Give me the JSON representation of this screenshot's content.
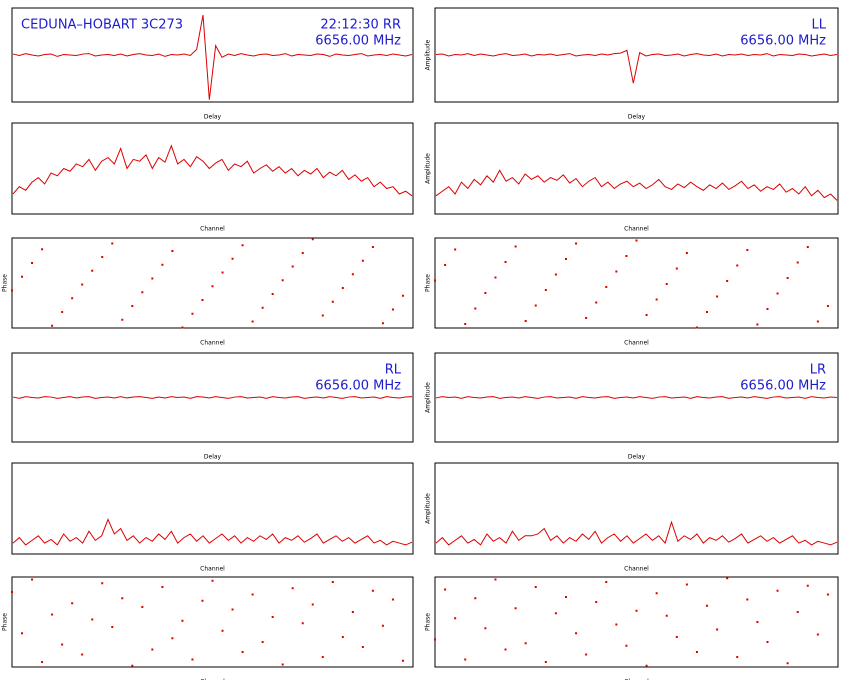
{
  "chart_data": [
    {
      "type": "line",
      "title": "CEDUNA–HOBART 3C273",
      "polarization": "22:12:30  RR",
      "frequency": "6656.00 MHz",
      "x_label": "Delay",
      "color": "#dd0000",
      "ylim": [
        -1,
        1
      ],
      "values": [
        0.02,
        -0.01,
        0.03,
        0,
        -0.02,
        0.01,
        0.02,
        -0.03,
        0.01,
        0,
        -0.01,
        0.02,
        0.03,
        -0.02,
        0,
        0.01,
        -0.01,
        0.02,
        -0.02,
        0.01,
        0.03,
        0,
        -0.01,
        0.02,
        -0.03,
        0.01,
        0,
        0.02,
        -0.01,
        0.12,
        0.85,
        -0.95,
        0.2,
        -0.05,
        0.02,
        -0.01,
        0.03,
        0,
        -0.02,
        0.01,
        0.02,
        -0.01,
        0,
        0.03,
        -0.02,
        0.01,
        0,
        -0.01,
        0.02,
        0.01,
        -0.03,
        0.02,
        0,
        -0.01,
        0.01,
        0.03,
        -0.02,
        0,
        0.01,
        -0.01,
        0.02,
        0,
        -0.02,
        0.01
      ]
    },
    {
      "type": "line",
      "polarization": "LL",
      "frequency": "6656.00 MHz",
      "x_label": "Delay",
      "y_label": "Amplitude",
      "color": "#dd0000",
      "ylim": [
        -1,
        1
      ],
      "values": [
        0.01,
        0.02,
        -0.02,
        0.01,
        0,
        0.03,
        -0.01,
        0.02,
        0,
        -0.02,
        0.01,
        0.03,
        -0.01,
        0,
        0.02,
        -0.02,
        0.01,
        0,
        0.02,
        -0.01,
        0.01,
        0.03,
        -0.02,
        0,
        0.01,
        -0.01,
        0.02,
        0,
        0.03,
        0.04,
        0.1,
        -0.6,
        0.05,
        -0.02,
        0.01,
        0.02,
        -0.01,
        0,
        0.02,
        -0.02,
        0.01,
        0.03,
        0,
        -0.01,
        0.02,
        -0.02,
        0.01,
        0,
        0.02,
        -0.01,
        0.01,
        0,
        0.03,
        -0.02,
        0.01,
        0,
        -0.01,
        0.02,
        0.01,
        -0.02,
        0,
        0.02,
        -0.01,
        0.01
      ]
    },
    {
      "type": "line",
      "x_label": "Channel",
      "color": "#dd0000",
      "ylim": [
        0,
        1
      ],
      "values": [
        0.22,
        0.3,
        0.26,
        0.35,
        0.4,
        0.33,
        0.45,
        0.42,
        0.5,
        0.47,
        0.55,
        0.52,
        0.6,
        0.48,
        0.58,
        0.62,
        0.55,
        0.72,
        0.5,
        0.6,
        0.58,
        0.65,
        0.5,
        0.62,
        0.57,
        0.75,
        0.55,
        0.6,
        0.52,
        0.63,
        0.58,
        0.5,
        0.56,
        0.6,
        0.48,
        0.55,
        0.52,
        0.58,
        0.45,
        0.5,
        0.54,
        0.47,
        0.52,
        0.45,
        0.5,
        0.42,
        0.48,
        0.44,
        0.5,
        0.4,
        0.46,
        0.42,
        0.48,
        0.38,
        0.43,
        0.36,
        0.4,
        0.3,
        0.35,
        0.28,
        0.3,
        0.22,
        0.25,
        0.2
      ]
    },
    {
      "type": "line",
      "x_label": "Channel",
      "y_label": "Amplitude",
      "color": "#dd0000",
      "ylim": [
        0,
        1
      ],
      "values": [
        0.2,
        0.25,
        0.3,
        0.22,
        0.35,
        0.28,
        0.38,
        0.32,
        0.42,
        0.35,
        0.48,
        0.36,
        0.4,
        0.33,
        0.44,
        0.38,
        0.42,
        0.35,
        0.4,
        0.37,
        0.43,
        0.34,
        0.39,
        0.3,
        0.36,
        0.4,
        0.3,
        0.35,
        0.28,
        0.33,
        0.36,
        0.3,
        0.34,
        0.28,
        0.32,
        0.38,
        0.3,
        0.27,
        0.33,
        0.29,
        0.35,
        0.3,
        0.26,
        0.32,
        0.28,
        0.34,
        0.27,
        0.31,
        0.36,
        0.28,
        0.32,
        0.25,
        0.3,
        0.27,
        0.33,
        0.24,
        0.28,
        0.22,
        0.3,
        0.2,
        0.26,
        0.18,
        0.22,
        0.15
      ]
    },
    {
      "type": "scatter",
      "x_label": "Channel",
      "y_label": "Phase",
      "color": "#dd0000",
      "xlim": [
        0,
        240
      ],
      "ylim": [
        -180,
        180
      ],
      "x": [
        0,
        6,
        12,
        18,
        24,
        30,
        36,
        42,
        48,
        54,
        60,
        66,
        72,
        78,
        84,
        90,
        96,
        102,
        108,
        114,
        120,
        126,
        132,
        138,
        144,
        150,
        156,
        162,
        168,
        174,
        180,
        186,
        192,
        198,
        204,
        210,
        216,
        222,
        228,
        234
      ],
      "values": [
        -30,
        25,
        80,
        135,
        -171,
        -116,
        -61,
        -6,
        49,
        104,
        158,
        -147,
        -92,
        -37,
        18,
        73,
        128,
        -178,
        -123,
        -68,
        -13,
        42,
        97,
        151,
        -154,
        -99,
        -44,
        11,
        66,
        120,
        175,
        -130,
        -75,
        -20,
        35,
        89,
        144,
        -161,
        -106,
        -51
      ]
    },
    {
      "type": "scatter",
      "x_label": "Channel",
      "y_label": "Phase",
      "color": "#dd0000",
      "xlim": [
        0,
        240
      ],
      "ylim": [
        -180,
        180
      ],
      "x": [
        0,
        6,
        12,
        18,
        24,
        30,
        36,
        42,
        48,
        54,
        60,
        66,
        72,
        78,
        84,
        90,
        96,
        102,
        108,
        114,
        120,
        126,
        132,
        138,
        144,
        150,
        156,
        162,
        168,
        174,
        180,
        186,
        192,
        198,
        204,
        210,
        216,
        222,
        228,
        234
      ],
      "values": [
        10,
        72,
        134,
        -164,
        -102,
        -40,
        22,
        84,
        146,
        -152,
        -90,
        -28,
        34,
        96,
        158,
        -140,
        -78,
        -16,
        46,
        108,
        170,
        -128,
        -66,
        -4,
        58,
        120,
        -178,
        -116,
        -54,
        8,
        70,
        132,
        -166,
        -104,
        -42,
        20,
        82,
        144,
        -154,
        -92
      ]
    },
    {
      "type": "line",
      "polarization": "RL",
      "frequency": "6656.00 MHz",
      "x_label": "Delay",
      "color": "#dd0000",
      "ylim": [
        -1,
        1
      ],
      "values": [
        0.01,
        -0.02,
        0.02,
        0,
        -0.01,
        0.02,
        0.01,
        -0.02,
        0,
        0.02,
        -0.01,
        0.01,
        0.02,
        -0.02,
        0,
        0.01,
        -0.01,
        0.02,
        -0.01,
        0.01,
        0.02,
        0,
        -0.02,
        0.01,
        -0.01,
        0.02,
        0,
        0.01,
        -0.02,
        0.02,
        0.01,
        -0.01,
        0.02,
        0,
        -0.02,
        0.01,
        0.02,
        -0.01,
        0,
        0.01,
        -0.02,
        0.02,
        0,
        -0.01,
        0.01,
        0.02,
        -0.02,
        0,
        0.01,
        -0.01,
        0.02,
        0,
        -0.02,
        0.01,
        0.02,
        -0.01,
        0,
        0.01,
        -0.02,
        0.02,
        0,
        -0.01,
        0.01,
        0.02
      ]
    },
    {
      "type": "line",
      "polarization": "LR",
      "frequency": "6656.00 MHz",
      "x_label": "Delay",
      "y_label": "Amplitude",
      "color": "#dd0000",
      "ylim": [
        -1,
        1
      ],
      "values": [
        -0.01,
        0.02,
        0,
        0.01,
        -0.02,
        0.02,
        0,
        -0.01,
        0.01,
        0.02,
        -0.02,
        0,
        0.01,
        -0.01,
        0.02,
        0,
        -0.02,
        0.01,
        0.02,
        -0.01,
        0,
        0.01,
        -0.02,
        0.02,
        0,
        -0.01,
        0.01,
        0.02,
        -0.02,
        0,
        0.01,
        -0.01,
        0.02,
        0,
        -0.02,
        0.01,
        0.02,
        -0.01,
        0,
        0.01,
        -0.02,
        0.02,
        0,
        -0.01,
        0.01,
        0.02,
        -0.02,
        0,
        0.01,
        -0.01,
        0.02,
        0,
        -0.02,
        0.01,
        0.02,
        -0.01,
        0,
        0.01,
        -0.02,
        0.02,
        0,
        -0.01,
        0.01,
        0
      ]
    },
    {
      "type": "line",
      "x_label": "Channel",
      "color": "#dd0000",
      "ylim": [
        0,
        1
      ],
      "values": [
        0.12,
        0.18,
        0.1,
        0.15,
        0.2,
        0.12,
        0.16,
        0.1,
        0.22,
        0.14,
        0.18,
        0.12,
        0.25,
        0.15,
        0.2,
        0.38,
        0.22,
        0.28,
        0.15,
        0.2,
        0.12,
        0.18,
        0.14,
        0.22,
        0.16,
        0.25,
        0.12,
        0.18,
        0.22,
        0.14,
        0.2,
        0.12,
        0.17,
        0.22,
        0.15,
        0.2,
        0.12,
        0.18,
        0.14,
        0.2,
        0.16,
        0.22,
        0.12,
        0.18,
        0.15,
        0.2,
        0.13,
        0.17,
        0.22,
        0.12,
        0.16,
        0.2,
        0.14,
        0.18,
        0.12,
        0.16,
        0.2,
        0.12,
        0.15,
        0.1,
        0.14,
        0.12,
        0.1,
        0.13
      ]
    },
    {
      "type": "line",
      "x_label": "Channel",
      "y_label": "Amplitude",
      "color": "#dd0000",
      "ylim": [
        0,
        1
      ],
      "values": [
        0.12,
        0.18,
        0.1,
        0.15,
        0.2,
        0.12,
        0.16,
        0.1,
        0.22,
        0.14,
        0.18,
        0.12,
        0.25,
        0.15,
        0.2,
        0.2,
        0.22,
        0.28,
        0.15,
        0.2,
        0.12,
        0.18,
        0.14,
        0.22,
        0.16,
        0.25,
        0.12,
        0.18,
        0.22,
        0.14,
        0.2,
        0.12,
        0.17,
        0.22,
        0.15,
        0.2,
        0.12,
        0.35,
        0.14,
        0.2,
        0.16,
        0.22,
        0.12,
        0.18,
        0.15,
        0.2,
        0.13,
        0.17,
        0.22,
        0.12,
        0.16,
        0.2,
        0.14,
        0.18,
        0.12,
        0.16,
        0.2,
        0.12,
        0.15,
        0.1,
        0.14,
        0.12,
        0.1,
        0.13
      ]
    },
    {
      "type": "scatter",
      "x_label": "Channel",
      "y_label": "Phase",
      "color": "#dd0000",
      "xlim": [
        0,
        240
      ],
      "ylim": [
        -180,
        180
      ],
      "x": [
        0,
        6,
        12,
        18,
        24,
        30,
        36,
        42,
        48,
        54,
        60,
        66,
        72,
        78,
        84,
        90,
        96,
        102,
        108,
        114,
        120,
        126,
        132,
        138,
        144,
        150,
        156,
        162,
        168,
        174,
        180,
        186,
        192,
        198,
        204,
        210,
        216,
        222,
        228,
        234
      ],
      "values": [
        120,
        -45,
        170,
        -160,
        30,
        -90,
        75,
        -130,
        10,
        155,
        -20,
        95,
        -175,
        60,
        -110,
        140,
        -65,
        5,
        -150,
        85,
        165,
        -35,
        50,
        -120,
        110,
        -80,
        20,
        -170,
        135,
        -5,
        70,
        -140,
        160,
        -60,
        40,
        -100,
        125,
        -15,
        90,
        -155
      ]
    },
    {
      "type": "scatter",
      "x_label": "Channel",
      "y_label": "Phase",
      "color": "#dd0000",
      "xlim": [
        0,
        240
      ],
      "ylim": [
        -180,
        180
      ],
      "x": [
        0,
        6,
        12,
        18,
        24,
        30,
        36,
        42,
        48,
        54,
        60,
        66,
        72,
        78,
        84,
        90,
        96,
        102,
        108,
        114,
        120,
        126,
        132,
        138,
        144,
        150,
        156,
        162,
        168,
        174,
        180,
        186,
        192,
        198,
        204,
        210,
        216,
        222,
        228,
        234
      ],
      "values": [
        -70,
        130,
        15,
        -150,
        95,
        -25,
        170,
        -110,
        55,
        -85,
        140,
        -160,
        35,
        100,
        -45,
        -130,
        80,
        160,
        -10,
        -95,
        45,
        -175,
        115,
        25,
        -60,
        150,
        -120,
        65,
        -30,
        175,
        -140,
        90,
        0,
        -80,
        125,
        -165,
        40,
        145,
        -50,
        110
      ]
    }
  ]
}
